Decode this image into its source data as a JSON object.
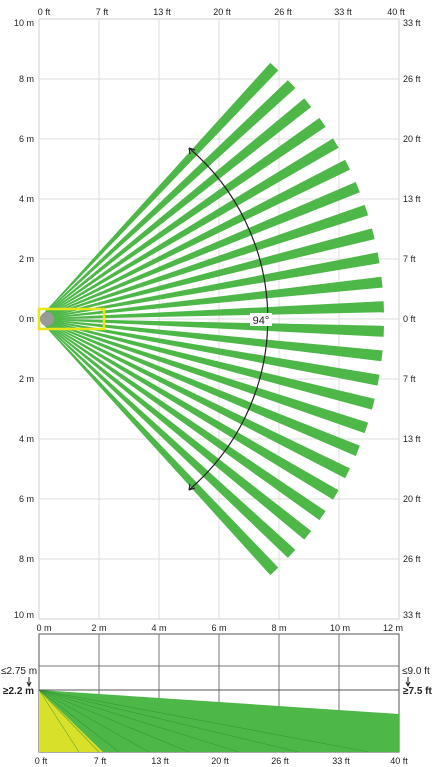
{
  "top_view": {
    "x_ft_labels": [
      "0 ft",
      "7 ft",
      "13 ft",
      "20 ft",
      "26 ft",
      "33 ft",
      "40 ft"
    ],
    "left_m_labels": [
      "10 m",
      "8 m",
      "6 m",
      "4 m",
      "2 m",
      "0 m",
      "2 m",
      "4 m",
      "6 m",
      "8 m",
      "10 m"
    ],
    "right_ft_labels": [
      "33 ft",
      "26 ft",
      "20 ft",
      "13 ft",
      "7 ft",
      "0 ft",
      "7 ft",
      "13 ft",
      "20 ft",
      "26 ft",
      "33 ft"
    ],
    "angle_label": "94°",
    "beam_count": 24,
    "beam_color": "#4db848",
    "highlight_color": "#e6e619"
  },
  "side_view": {
    "x_m_labels": [
      "0 m",
      "2 m",
      "4 m",
      "6 m",
      "8 m",
      "10 m",
      "12 m"
    ],
    "x_ft_labels": [
      "0 ft",
      "7 ft",
      "13 ft",
      "20 ft",
      "26 ft",
      "33 ft",
      "40 ft"
    ],
    "left_max_label": "≤2.75 m",
    "left_mount_label": "≥2.2 m",
    "right_max_label": "≤9.0 ft",
    "right_mount_label": "≥7.5 ft",
    "zone_color": "#4db848",
    "creep_color": "#d8e02a"
  }
}
